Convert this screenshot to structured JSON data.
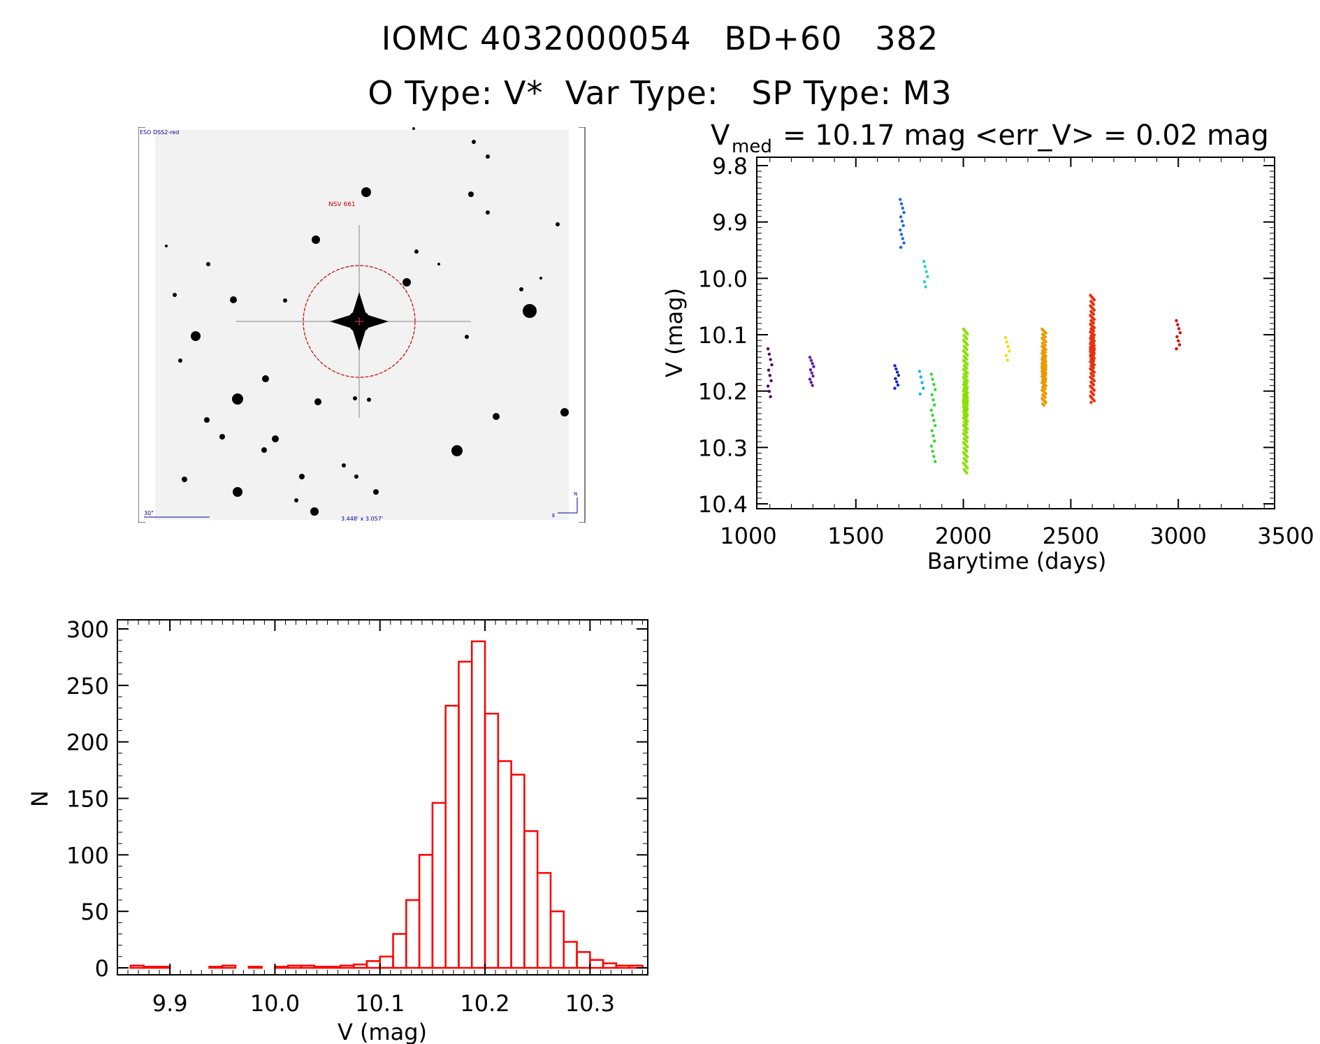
{
  "header": {
    "line1": "IOMC 4032000054   BD+60   382",
    "line2": "O Type: V*  Var Type:   SP Type: M3"
  },
  "finder_image": {
    "survey_label": "ESO DSS2-red",
    "object_label": "NSV 661",
    "scale_label": "30\"",
    "fov_label": "3.448' x 3.057'",
    "north_label": "N",
    "east_label": "E"
  },
  "chart_data": [
    {
      "type": "scatter",
      "title_v": "V",
      "title_sub": "med",
      "title_rest": "= 10.17 mag <err_V> = 0.02 mag",
      "xlabel": "Barytime (days)",
      "ylabel": "V (mag)",
      "xlim": [
        1000,
        3500
      ],
      "ylim": [
        10.4,
        9.8
      ],
      "xticks": [
        "1000",
        "1500",
        "2000",
        "2500",
        "3000",
        "3500"
      ],
      "yticks": [
        "9.8",
        "9.9",
        "10.0",
        "10.1",
        "10.2",
        "10.3",
        "10.4"
      ],
      "series": [
        {
          "x": 1100,
          "y_min": 10.125,
          "y_max": 10.21,
          "points": 10,
          "color": "#4a0a58"
        },
        {
          "x": 1295,
          "y_min": 10.14,
          "y_max": 10.19,
          "points": 10,
          "color": "#5a1fa0"
        },
        {
          "x": 1690,
          "y_min": 10.155,
          "y_max": 10.195,
          "points": 8,
          "color": "#1a24c8"
        },
        {
          "x": 1715,
          "y_min": 9.86,
          "y_max": 9.945,
          "points": 12,
          "color": "#1a6ae0"
        },
        {
          "x": 1805,
          "y_min": 10.165,
          "y_max": 10.205,
          "points": 5,
          "color": "#18b8d8"
        },
        {
          "x": 1825,
          "y_min": 9.97,
          "y_max": 10.015,
          "points": 6,
          "color": "#20d8c0"
        },
        {
          "x": 1860,
          "y_min": 10.17,
          "y_max": 10.325,
          "points": 18,
          "color": "#30d830"
        },
        {
          "x": 2010,
          "y_min": 10.09,
          "y_max": 10.345,
          "points": 140,
          "color": "#8ae000"
        },
        {
          "x": 2205,
          "y_min": 10.105,
          "y_max": 10.145,
          "points": 6,
          "color": "#e8e000"
        },
        {
          "x": 2375,
          "y_min": 10.09,
          "y_max": 10.225,
          "points": 90,
          "color": "#e89a00"
        },
        {
          "x": 2600,
          "y_min": 10.03,
          "y_max": 10.22,
          "points": 110,
          "color": "#e83010"
        },
        {
          "x": 3000,
          "y_min": 10.075,
          "y_max": 10.125,
          "points": 8,
          "color": "#e00000"
        }
      ]
    },
    {
      "type": "bar",
      "subtype": "histogram",
      "xlabel": "V (mag)",
      "ylabel": "N",
      "xlim": [
        9.85,
        10.355
      ],
      "ylim": [
        0,
        305
      ],
      "xticks": [
        "9.9",
        "10.0",
        "10.1",
        "10.2",
        "10.3"
      ],
      "yticks": [
        "0",
        "50",
        "100",
        "150",
        "200",
        "250",
        "300"
      ],
      "bin_width": 0.0125,
      "bin_start": 9.8625,
      "values": [
        2,
        1,
        1,
        0,
        0,
        0,
        1,
        2,
        0,
        1,
        0,
        1,
        2,
        2,
        1,
        1,
        2,
        3,
        6,
        10,
        30,
        60,
        100,
        146,
        232,
        271,
        289,
        225,
        183,
        171,
        121,
        84,
        50,
        23,
        14,
        7,
        4,
        2,
        2,
        0,
        0
      ],
      "color": "#ff0000"
    }
  ]
}
